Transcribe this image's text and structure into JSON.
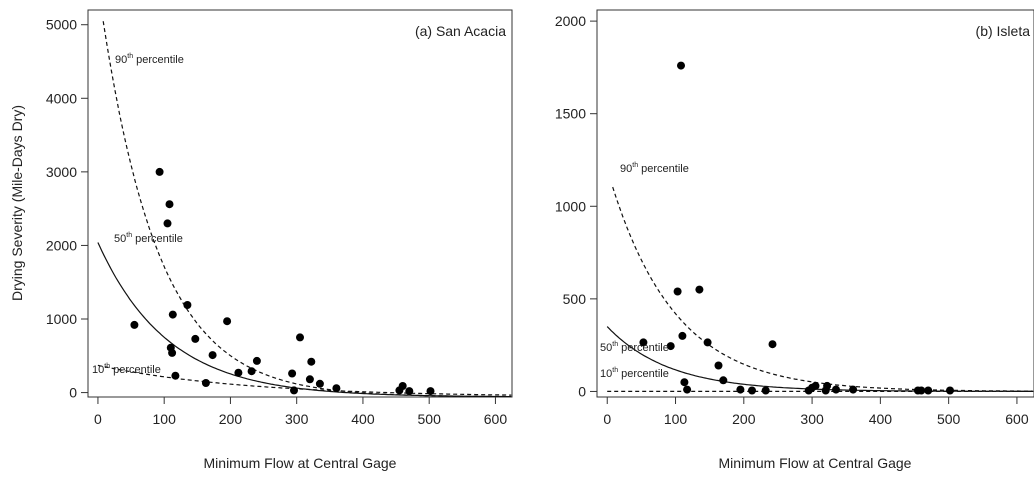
{
  "chart_data": [
    {
      "type": "scatter",
      "panel_label": "(a) San Acacia",
      "xlabel": "Minimum Flow at Central Gage",
      "ylabel": "Drying Severity (Mile-Days Dry)",
      "xlim": [
        -15,
        625
      ],
      "ylim": [
        -60,
        5200
      ],
      "x_ticks": [
        0,
        100,
        200,
        300,
        400,
        500,
        600
      ],
      "y_ticks": [
        0,
        1000,
        2000,
        3000,
        4000,
        5000
      ],
      "grid": false,
      "legend": "none",
      "points": [
        [
          55,
          920
        ],
        [
          93,
          3000
        ],
        [
          105,
          2300
        ],
        [
          108,
          2560
        ],
        [
          110,
          610
        ],
        [
          112,
          540
        ],
        [
          113,
          1060
        ],
        [
          117,
          230
        ],
        [
          135,
          1190
        ],
        [
          147,
          730
        ],
        [
          163,
          130
        ],
        [
          173,
          510
        ],
        [
          195,
          970
        ],
        [
          212,
          270
        ],
        [
          232,
          290
        ],
        [
          240,
          430
        ],
        [
          293,
          260
        ],
        [
          296,
          30
        ],
        [
          305,
          750
        ],
        [
          320,
          180
        ],
        [
          322,
          420
        ],
        [
          335,
          120
        ],
        [
          360,
          60
        ],
        [
          455,
          30
        ],
        [
          460,
          90
        ],
        [
          470,
          20
        ],
        [
          502,
          20
        ]
      ],
      "curves": [
        {
          "label_main": "90",
          "label_sup": "th",
          "label_rest": " percentile",
          "style": "dashed",
          "a": 5600,
          "b": 0.0115,
          "c": -60,
          "x_from": 8,
          "x_to": 625
        },
        {
          "label_main": "50",
          "label_sup": "th",
          "label_rest": " percentile",
          "style": "solid",
          "a": 2100,
          "b": 0.0095,
          "c": -60,
          "x_from": 0,
          "x_to": 625
        },
        {
          "label_main": "10",
          "label_sup": "th",
          "label_rest": " percentile",
          "style": "dashed",
          "a": 430,
          "b": 0.0045,
          "c": -60,
          "x_from": 0,
          "x_to": 625
        }
      ]
    },
    {
      "type": "scatter",
      "panel_label": "(b) Isleta",
      "xlabel": "Minimum Flow at Central Gage",
      "ylabel": "",
      "xlim": [
        -15,
        625
      ],
      "ylim": [
        -30,
        2060
      ],
      "x_ticks": [
        0,
        100,
        200,
        300,
        400,
        500,
        600
      ],
      "y_ticks": [
        0,
        500,
        1000,
        1500,
        2000
      ],
      "grid": false,
      "legend": "none",
      "points": [
        [
          53,
          265
        ],
        [
          93,
          245
        ],
        [
          103,
          540
        ],
        [
          108,
          1760
        ],
        [
          110,
          300
        ],
        [
          113,
          50
        ],
        [
          117,
          10
        ],
        [
          135,
          550
        ],
        [
          147,
          265
        ],
        [
          163,
          140
        ],
        [
          170,
          60
        ],
        [
          195,
          10
        ],
        [
          212,
          5
        ],
        [
          232,
          5
        ],
        [
          295,
          5
        ],
        [
          300,
          20
        ],
        [
          305,
          30
        ],
        [
          320,
          5
        ],
        [
          322,
          30
        ],
        [
          335,
          10
        ],
        [
          360,
          10
        ],
        [
          455,
          5
        ],
        [
          460,
          5
        ],
        [
          470,
          5
        ],
        [
          502,
          5
        ],
        [
          242,
          255
        ]
      ],
      "curves": [
        {
          "label_main": "90",
          "label_sup": "th",
          "label_rest": " percentile",
          "style": "dashed",
          "a": 1200,
          "b": 0.0105,
          "c": 0,
          "x_from": 8,
          "x_to": 625
        },
        {
          "label_main": "50",
          "label_sup": "th",
          "label_rest": " percentile",
          "style": "solid",
          "a": 350,
          "b": 0.011,
          "c": 0,
          "x_from": 0,
          "x_to": 625
        },
        {
          "label_main": "10",
          "label_sup": "th",
          "label_rest": " percentile",
          "style": "dashed",
          "a": 0,
          "b": 0,
          "c": 0,
          "x_from": 0,
          "x_to": 625
        }
      ]
    }
  ]
}
